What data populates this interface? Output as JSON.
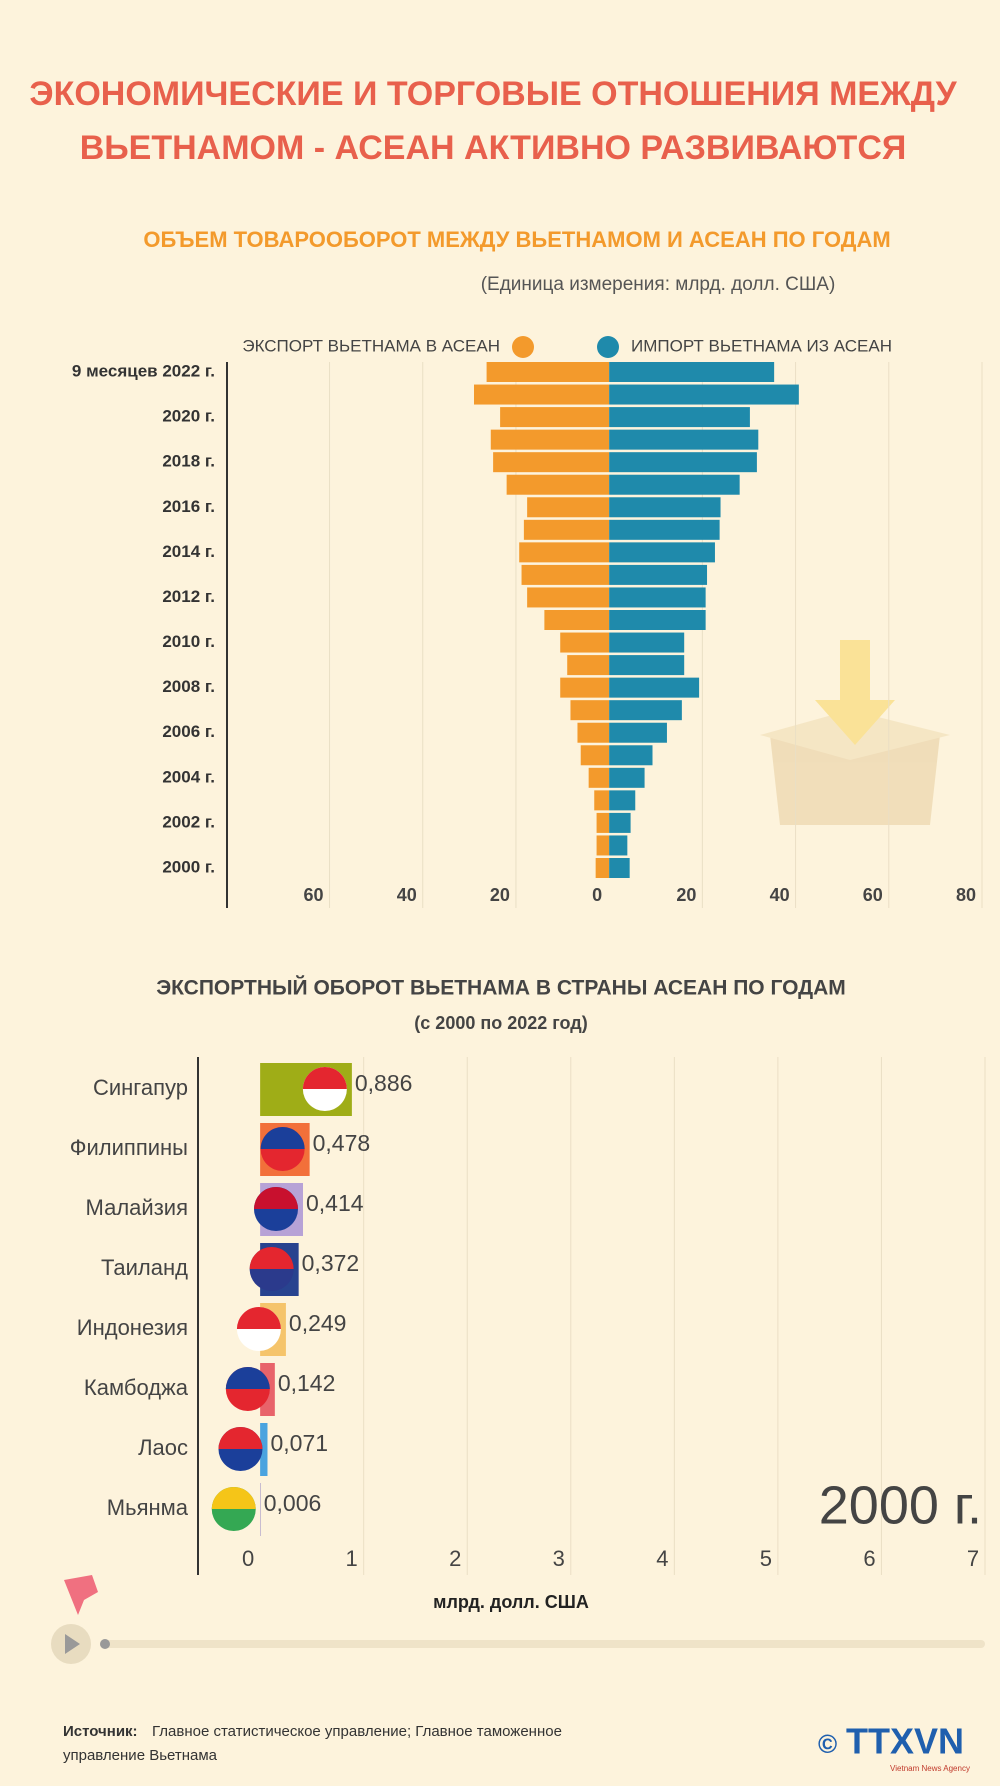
{
  "header": {
    "title_lines": [
      "ЭКОНОМИЧЕСКИЕ И ТОРГОВЫЕ ОТНОШЕНИЯ МЕЖДУ",
      "ВЬЕТНАМОМ - АСЕАН АКТИВНО РАЗВИВАЮТСЯ"
    ]
  },
  "chart_data": [
    {
      "type": "butterfly",
      "title": "ОБЪЕМ ТОВАРООБОРОТ МЕЖДУ ВЬЕТНАМОМ И АСЕАН ПО ГОДАМ",
      "subtitle": "(Единица измерения: млрд. долл. США)",
      "categories": [
        "9 месяцев 2022 г.",
        null,
        "2020 г.",
        null,
        "2018 г.",
        null,
        "2016 г.",
        null,
        "2014 г.",
        null,
        "2012 г.",
        null,
        "2010 г.",
        null,
        "2008 г.",
        null,
        "2006 г.",
        null,
        "2004 г.",
        null,
        "2002 г.",
        null,
        "2000 г."
      ],
      "series": [
        {
          "name": "ЭКСПОРТ ВЬЕТНАМА В АСЕАН",
          "color": "#f39a2c",
          "side": "left",
          "values": [
            26.3,
            29.0,
            23.4,
            25.4,
            24.9,
            22.0,
            17.6,
            18.3,
            19.3,
            18.8,
            17.6,
            13.9,
            10.5,
            9.0,
            10.5,
            8.3,
            6.8,
            6.1,
            4.4,
            3.2,
            2.7,
            2.7,
            2.9
          ]
        },
        {
          "name": "ИМПОРТ ВЬЕТНАМА ИЗ АСЕАН",
          "color": "#1f8aab",
          "side": "right",
          "values": [
            35.4,
            40.7,
            30.2,
            32.0,
            31.7,
            28.0,
            23.9,
            23.7,
            22.7,
            21.0,
            20.7,
            20.7,
            16.1,
            16.1,
            19.3,
            15.6,
            12.4,
            9.3,
            7.6,
            5.6,
            4.6,
            3.9,
            4.4
          ]
        }
      ],
      "xlim": [
        -82,
        80
      ],
      "xticks": [
        {
          "value": -60,
          "label": "60"
        },
        {
          "value": -40,
          "label": "40"
        },
        {
          "value": -20,
          "label": "20"
        },
        0,
        20,
        40,
        60,
        80
      ],
      "grid": true
    },
    {
      "type": "hbar",
      "title": "ЭКСПОРТНЫЙ ОБОРОТ ВЬЕТНАМА В СТРАНЫ АСЕАН ПО ГОДАМ",
      "subtitle": "(с 2000 по 2022 год)",
      "categories": [
        "Сингапур",
        "Филиппины",
        "Малайзия",
        "Таиланд",
        "Индонезия",
        "Камбоджа",
        "Лаос",
        "Мьянма"
      ],
      "values": [
        0.886,
        0.478,
        0.414,
        0.372,
        0.249,
        0.142,
        0.071,
        0.006
      ],
      "value_labels": [
        "0,886",
        "0,478",
        "0,414",
        "0,372",
        "0,249",
        "0,142",
        "0,071",
        "0,006"
      ],
      "colors": [
        "#9fad17",
        "#f2703a",
        "#b7a2d6",
        "#28438f",
        "#f5c46b",
        "#e8636a",
        "#4aa3df",
        "#a99bc8"
      ],
      "xlim": [
        -0.6,
        7
      ],
      "xticks": [
        0,
        1,
        2,
        3,
        4,
        5,
        6,
        7
      ],
      "xlabel": "млрд. долл. США",
      "year_label": "2000 г.",
      "grid": true
    }
  ],
  "footer": {
    "source_label": "Источник:",
    "source_lines": [
      "Главное статистическое управление; Главное таможенное",
      "управление Вьетнама"
    ],
    "logo": "TTXVN",
    "logo_sub": "Vietnam News Agency",
    "copyright": "©"
  }
}
